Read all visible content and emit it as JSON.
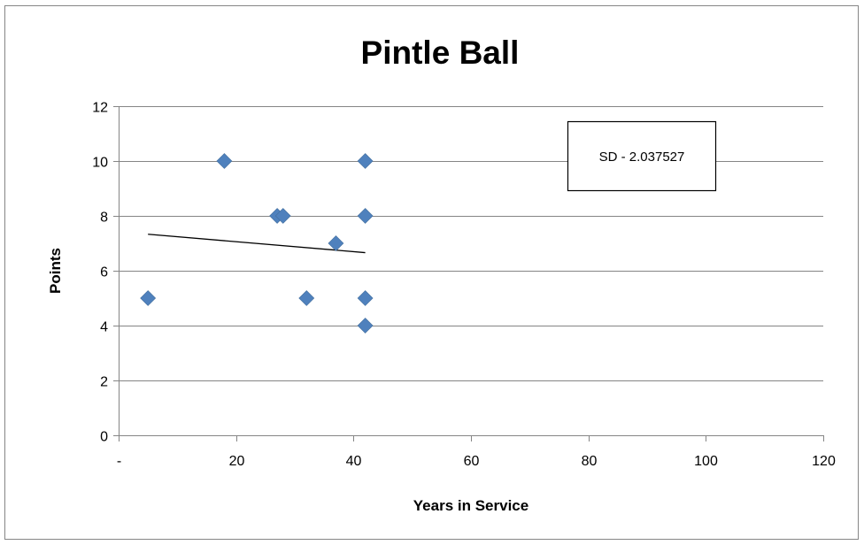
{
  "chart_data": {
    "type": "scatter",
    "title": "Pintle Ball",
    "xlabel": "Years in Service",
    "ylabel": "Points",
    "xlim": [
      0,
      120
    ],
    "ylim": [
      0,
      12
    ],
    "x_ticks": [
      0,
      20,
      40,
      60,
      80,
      100,
      120
    ],
    "x_tick_labels": [
      "-",
      "20",
      "40",
      "60",
      "80",
      "100",
      "120"
    ],
    "y_ticks": [
      0,
      2,
      4,
      6,
      8,
      10,
      12
    ],
    "y_tick_labels": [
      "0",
      "2",
      "4",
      "6",
      "8",
      "10",
      "12"
    ],
    "grid": "horizontal",
    "colors": {
      "marker": "#4f81bd",
      "trendline": "#000000",
      "gridline": "#858585",
      "frame": "#868686"
    },
    "series": [
      {
        "points": [
          {
            "x": 5,
            "y": 5
          },
          {
            "x": 18,
            "y": 10
          },
          {
            "x": 27,
            "y": 8
          },
          {
            "x": 28,
            "y": 8
          },
          {
            "x": 32,
            "y": 5
          },
          {
            "x": 37,
            "y": 7
          },
          {
            "x": 42,
            "y": 10
          },
          {
            "x": 42,
            "y": 8
          },
          {
            "x": 42,
            "y": 5
          },
          {
            "x": 42,
            "y": 4
          }
        ]
      }
    ],
    "trendline": {
      "x": [
        5,
        42
      ],
      "y": [
        7.33,
        6.66
      ]
    },
    "annotation": {
      "text": "SD - 2.037527"
    }
  }
}
